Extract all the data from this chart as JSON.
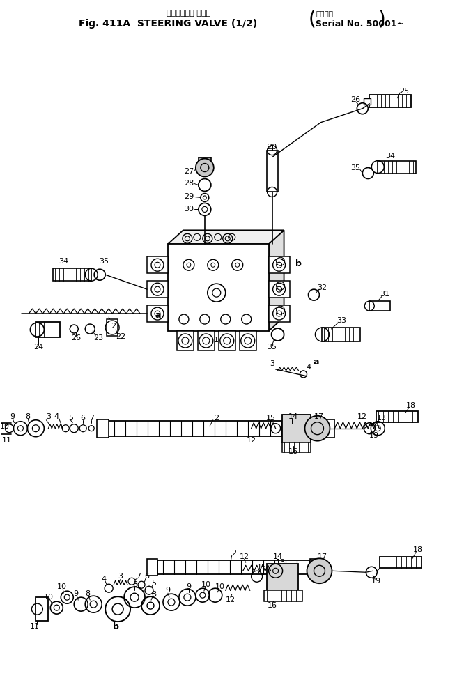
{
  "title_jp": "ステアリング バルブ",
  "title_en": "Fig. 411A  STEERING VALVE (1/2)",
  "serial_jp": "適用号機",
  "serial_en": "Serial No. 50001~",
  "bg_color": "#ffffff",
  "lc": "#000000",
  "fig_width": 6.66,
  "fig_height": 9.73,
  "dpi": 100
}
